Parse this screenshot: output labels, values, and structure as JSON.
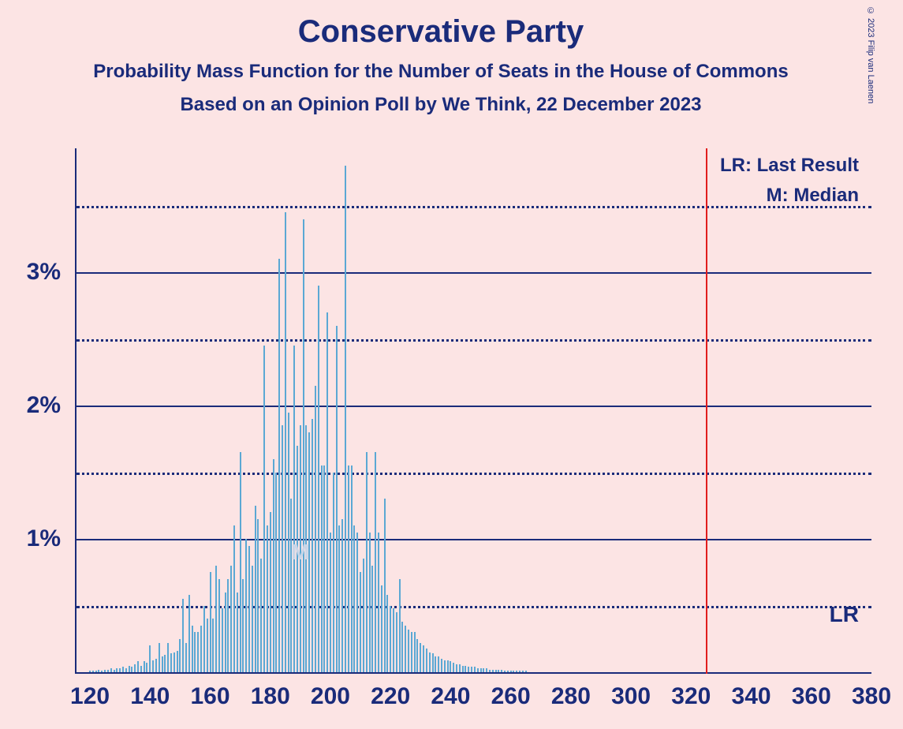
{
  "copyright": "© 2023 Filip van Laenen",
  "titles": {
    "main": "Conservative Party",
    "sub": "Probability Mass Function for the Number of Seats in the House of Commons",
    "date": "Based on an Opinion Poll by We Think, 22 December 2023"
  },
  "chart": {
    "type": "bar",
    "background_color": "#fce4e4",
    "axis_color": "#1a2b7a",
    "bar_color": "#5ba8d4",
    "lr_line_color": "#e11d1d",
    "x_min": 115,
    "x_max": 380,
    "x_ticks": [
      120,
      140,
      160,
      180,
      200,
      220,
      240,
      260,
      280,
      300,
      320,
      340,
      360,
      380
    ],
    "y_max_pct": 3.93,
    "y_ticks_solid": [
      1,
      2,
      3
    ],
    "y_ticks_dotted": [
      0.5,
      1.5,
      2.5,
      3.5
    ],
    "y_labels": [
      "1%",
      "2%",
      "3%"
    ],
    "lr_value": 325,
    "median_value": 190,
    "legend": {
      "lr": "LR: Last Result",
      "m": "M: Median"
    },
    "m_marker": "M",
    "lr_marker": "LR",
    "series": [
      {
        "x": 120,
        "y": 0.01
      },
      {
        "x": 121,
        "y": 0.01
      },
      {
        "x": 122,
        "y": 0.01
      },
      {
        "x": 123,
        "y": 0.02
      },
      {
        "x": 124,
        "y": 0.01
      },
      {
        "x": 125,
        "y": 0.02
      },
      {
        "x": 126,
        "y": 0.02
      },
      {
        "x": 127,
        "y": 0.03
      },
      {
        "x": 128,
        "y": 0.02
      },
      {
        "x": 129,
        "y": 0.03
      },
      {
        "x": 130,
        "y": 0.03
      },
      {
        "x": 131,
        "y": 0.04
      },
      {
        "x": 132,
        "y": 0.03
      },
      {
        "x": 133,
        "y": 0.05
      },
      {
        "x": 134,
        "y": 0.04
      },
      {
        "x": 135,
        "y": 0.06
      },
      {
        "x": 136,
        "y": 0.08
      },
      {
        "x": 137,
        "y": 0.05
      },
      {
        "x": 138,
        "y": 0.08
      },
      {
        "x": 139,
        "y": 0.07
      },
      {
        "x": 140,
        "y": 0.2
      },
      {
        "x": 141,
        "y": 0.09
      },
      {
        "x": 142,
        "y": 0.1
      },
      {
        "x": 143,
        "y": 0.22
      },
      {
        "x": 144,
        "y": 0.12
      },
      {
        "x": 145,
        "y": 0.13
      },
      {
        "x": 146,
        "y": 0.22
      },
      {
        "x": 147,
        "y": 0.14
      },
      {
        "x": 148,
        "y": 0.15
      },
      {
        "x": 149,
        "y": 0.16
      },
      {
        "x": 150,
        "y": 0.25
      },
      {
        "x": 151,
        "y": 0.55
      },
      {
        "x": 152,
        "y": 0.22
      },
      {
        "x": 153,
        "y": 0.58
      },
      {
        "x": 154,
        "y": 0.35
      },
      {
        "x": 155,
        "y": 0.3
      },
      {
        "x": 156,
        "y": 0.3
      },
      {
        "x": 157,
        "y": 0.35
      },
      {
        "x": 158,
        "y": 0.5
      },
      {
        "x": 159,
        "y": 0.4
      },
      {
        "x": 160,
        "y": 0.75
      },
      {
        "x": 161,
        "y": 0.4
      },
      {
        "x": 162,
        "y": 0.8
      },
      {
        "x": 163,
        "y": 0.7
      },
      {
        "x": 164,
        "y": 0.48
      },
      {
        "x": 165,
        "y": 0.6
      },
      {
        "x": 166,
        "y": 0.7
      },
      {
        "x": 167,
        "y": 0.8
      },
      {
        "x": 168,
        "y": 1.1
      },
      {
        "x": 169,
        "y": 0.6
      },
      {
        "x": 170,
        "y": 1.65
      },
      {
        "x": 171,
        "y": 0.7
      },
      {
        "x": 172,
        "y": 1.0
      },
      {
        "x": 173,
        "y": 0.95
      },
      {
        "x": 174,
        "y": 0.8
      },
      {
        "x": 175,
        "y": 1.25
      },
      {
        "x": 176,
        "y": 1.15
      },
      {
        "x": 177,
        "y": 0.85
      },
      {
        "x": 178,
        "y": 2.45
      },
      {
        "x": 179,
        "y": 1.1
      },
      {
        "x": 180,
        "y": 1.2
      },
      {
        "x": 181,
        "y": 1.6
      },
      {
        "x": 182,
        "y": 1.5
      },
      {
        "x": 183,
        "y": 3.1
      },
      {
        "x": 184,
        "y": 1.85
      },
      {
        "x": 185,
        "y": 3.45
      },
      {
        "x": 186,
        "y": 1.95
      },
      {
        "x": 187,
        "y": 1.3
      },
      {
        "x": 188,
        "y": 2.45
      },
      {
        "x": 189,
        "y": 1.7
      },
      {
        "x": 190,
        "y": 1.85
      },
      {
        "x": 191,
        "y": 3.4
      },
      {
        "x": 192,
        "y": 1.85
      },
      {
        "x": 193,
        "y": 1.8
      },
      {
        "x": 194,
        "y": 1.9
      },
      {
        "x": 195,
        "y": 2.15
      },
      {
        "x": 196,
        "y": 2.9
      },
      {
        "x": 197,
        "y": 1.55
      },
      {
        "x": 198,
        "y": 1.55
      },
      {
        "x": 199,
        "y": 2.7
      },
      {
        "x": 200,
        "y": 1.05
      },
      {
        "x": 201,
        "y": 1.5
      },
      {
        "x": 202,
        "y": 2.6
      },
      {
        "x": 203,
        "y": 1.1
      },
      {
        "x": 204,
        "y": 1.15
      },
      {
        "x": 205,
        "y": 3.8
      },
      {
        "x": 206,
        "y": 1.55
      },
      {
        "x": 207,
        "y": 1.55
      },
      {
        "x": 208,
        "y": 1.1
      },
      {
        "x": 209,
        "y": 1.05
      },
      {
        "x": 210,
        "y": 0.75
      },
      {
        "x": 211,
        "y": 0.85
      },
      {
        "x": 212,
        "y": 1.65
      },
      {
        "x": 213,
        "y": 1.05
      },
      {
        "x": 214,
        "y": 0.8
      },
      {
        "x": 215,
        "y": 1.65
      },
      {
        "x": 216,
        "y": 1.05
      },
      {
        "x": 217,
        "y": 0.65
      },
      {
        "x": 218,
        "y": 1.3
      },
      {
        "x": 219,
        "y": 0.58
      },
      {
        "x": 220,
        "y": 0.5
      },
      {
        "x": 221,
        "y": 0.48
      },
      {
        "x": 222,
        "y": 0.45
      },
      {
        "x": 223,
        "y": 0.7
      },
      {
        "x": 224,
        "y": 0.38
      },
      {
        "x": 225,
        "y": 0.35
      },
      {
        "x": 226,
        "y": 0.32
      },
      {
        "x": 227,
        "y": 0.3
      },
      {
        "x": 228,
        "y": 0.3
      },
      {
        "x": 229,
        "y": 0.25
      },
      {
        "x": 230,
        "y": 0.22
      },
      {
        "x": 231,
        "y": 0.2
      },
      {
        "x": 232,
        "y": 0.18
      },
      {
        "x": 233,
        "y": 0.15
      },
      {
        "x": 234,
        "y": 0.14
      },
      {
        "x": 235,
        "y": 0.12
      },
      {
        "x": 236,
        "y": 0.12
      },
      {
        "x": 237,
        "y": 0.1
      },
      {
        "x": 238,
        "y": 0.09
      },
      {
        "x": 239,
        "y": 0.09
      },
      {
        "x": 240,
        "y": 0.08
      },
      {
        "x": 241,
        "y": 0.07
      },
      {
        "x": 242,
        "y": 0.06
      },
      {
        "x": 243,
        "y": 0.06
      },
      {
        "x": 244,
        "y": 0.05
      },
      {
        "x": 245,
        "y": 0.05
      },
      {
        "x": 246,
        "y": 0.04
      },
      {
        "x": 247,
        "y": 0.04
      },
      {
        "x": 248,
        "y": 0.04
      },
      {
        "x": 249,
        "y": 0.03
      },
      {
        "x": 250,
        "y": 0.03
      },
      {
        "x": 251,
        "y": 0.03
      },
      {
        "x": 252,
        "y": 0.03
      },
      {
        "x": 253,
        "y": 0.02
      },
      {
        "x": 254,
        "y": 0.02
      },
      {
        "x": 255,
        "y": 0.02
      },
      {
        "x": 256,
        "y": 0.02
      },
      {
        "x": 257,
        "y": 0.02
      },
      {
        "x": 258,
        "y": 0.01
      },
      {
        "x": 259,
        "y": 0.01
      },
      {
        "x": 260,
        "y": 0.01
      },
      {
        "x": 261,
        "y": 0.01
      },
      {
        "x": 262,
        "y": 0.01
      },
      {
        "x": 263,
        "y": 0.01
      },
      {
        "x": 264,
        "y": 0.01
      },
      {
        "x": 265,
        "y": 0.01
      }
    ]
  }
}
